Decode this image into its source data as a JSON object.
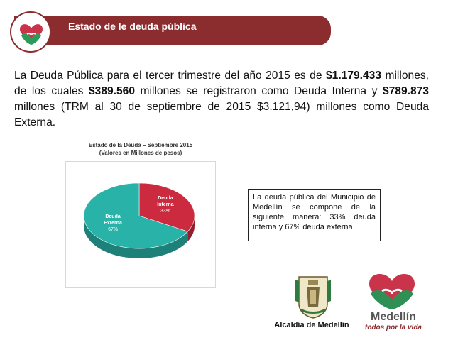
{
  "header": {
    "title": "Estado de le deuda pública"
  },
  "intro": {
    "p1": "La Deuda Pública para el tercer trimestre del año 2015 es de ",
    "total": "$1.179.433",
    "p2": " millones, de los cuales ",
    "interna": "$389.560",
    "p3": " millones se registraron como Deuda Interna y ",
    "externa": "$789.873",
    "p4": " millones (TRM al 30 de septiembre de 2015 $3.121,94) millones como Deuda Externa."
  },
  "chart_data": {
    "type": "pie",
    "title": "Estado de la Deuda – Septiembre 2015",
    "subtitle": "(Valores en Millones de pesos)",
    "slices": [
      {
        "label": "Deuda Interna",
        "value": 33,
        "display": "33%",
        "color": "#cc2a3e"
      },
      {
        "label": "Deuda Externa",
        "value": 67,
        "display": "67%",
        "color": "#29b3a8"
      }
    ]
  },
  "note": {
    "text": "La deuda pública del Municipio de Medellín se compone de la siguiente manera: 33% deuda interna y 67% deuda externa"
  },
  "footer": {
    "alcaldia_label": "Alcaldía de Medellín",
    "medellin_name": "Medellín",
    "medellin_tagline": "todos por la vida"
  },
  "colors": {
    "brand": "#8b2c2f",
    "interna": "#cc2a3e",
    "externa": "#29b3a8"
  },
  "icons": [
    "heart-logo-icon",
    "coat-of-arms-icon",
    "medellin-heart-icon"
  ]
}
